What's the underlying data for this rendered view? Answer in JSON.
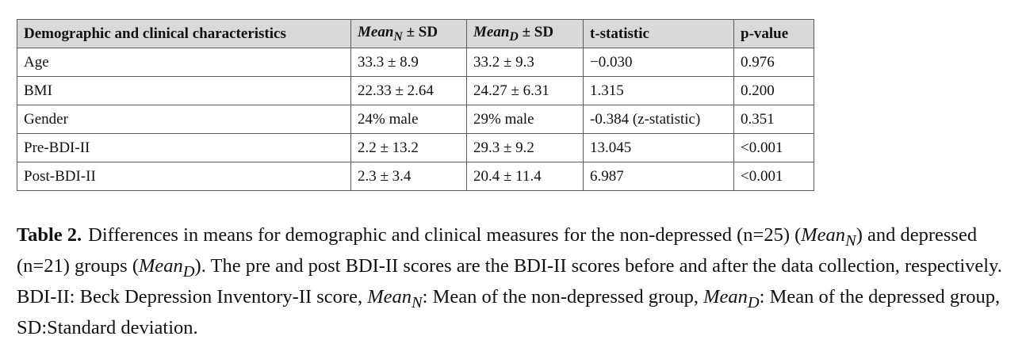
{
  "table": {
    "headers": {
      "characteristics": "Demographic and clinical characteristics",
      "mean_n": {
        "var": "Mean",
        "sub": "N",
        "suffix": " ± SD"
      },
      "mean_d": {
        "var": "Mean",
        "sub": "D",
        "suffix": " ± SD"
      },
      "t_stat": "t-statistic",
      "p_value": "p-value"
    },
    "rows": [
      {
        "name": "Age",
        "mean_n": "33.3 ± 8.9",
        "mean_d": "33.2 ± 9.3",
        "t": "−0.030",
        "p": "0.976"
      },
      {
        "name": "BMI",
        "mean_n": "22.33 ± 2.64",
        "mean_d": "24.27 ± 6.31",
        "t": "1.315",
        "p": "0.200"
      },
      {
        "name": "Gender",
        "mean_n": "24% male",
        "mean_d": "29% male",
        "t": "-0.384 (z-statistic)",
        "p": "0.351"
      },
      {
        "name": "Pre-BDI-II",
        "mean_n": "2.2 ± 13.2",
        "mean_d": "29.3 ± 9.2",
        "t": "13.045",
        "p": "<0.001"
      },
      {
        "name": "Post-BDI-II",
        "mean_n": "2.3 ± 3.4",
        "mean_d": "20.4 ± 11.4",
        "t": "6.987",
        "p": "<0.001"
      }
    ]
  },
  "caption": {
    "label": "Table 2.",
    "t1": "Differences in means for demographic and clinical measures for the non-depressed (n=25) (",
    "m1_var": "Mean",
    "m1_sub": "N",
    "t2": ") and depressed (n=21) groups (",
    "m2_var": "Mean",
    "m2_sub": "D",
    "t3": "). The pre and post BDI-II scores are the BDI-II scores before and after the data collection, respectively. BDI-II: Beck Depression Inventory-II score, ",
    "m3_var": "Mean",
    "m3_sub": "N",
    "t4": ": Mean of the non-depressed group, ",
    "m4_var": "Mean",
    "m4_sub": "D",
    "t5": ": Mean of the depressed group, SD:Standard deviation."
  },
  "colors": {
    "header_bg": "#d9d9d9",
    "border": "#5a5a5a",
    "text": "#111111"
  }
}
